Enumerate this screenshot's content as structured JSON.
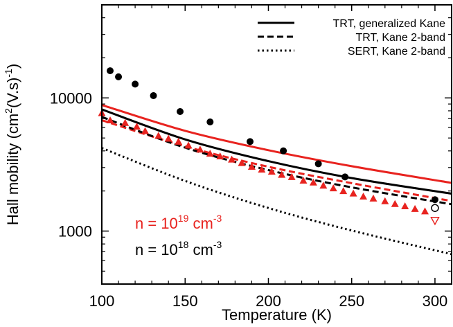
{
  "chart_data": {
    "type": "line",
    "xlabel": "Temperature (K)",
    "ylabel": "Hall mobility (cm2(V.s)-1)",
    "ylabel_parts": {
      "pre": "Hall mobility (cm",
      "sup1": "2",
      "mid": "(V.s)",
      "sup2": "-1",
      "post": ")"
    },
    "xlim": [
      100,
      310
    ],
    "ylim": [
      400,
      50000
    ],
    "yscale": "log",
    "xticks": [
      100,
      150,
      200,
      250,
      300
    ],
    "yticks": [
      {
        "value": 1000,
        "label": "1000"
      },
      {
        "value": 10000,
        "label": "10000"
      }
    ],
    "grid": false,
    "legend_position": "top-right",
    "legend": [
      {
        "label": "TRT, generalized Kane",
        "dash": "solid"
      },
      {
        "label": "TRT, Kane 2-band",
        "dash": "dashed"
      },
      {
        "label": "SERT, Kane 2-band",
        "dash": "dotted"
      }
    ],
    "annotations": [
      {
        "base": "n = 10",
        "exp": "19",
        "unit": " cm",
        "unit_exp": "-3",
        "color": "#e8231f"
      },
      {
        "base": "n = 10",
        "exp": "18",
        "unit": " cm",
        "unit_exp": "-3",
        "color": "#000000"
      }
    ],
    "lines": [
      {
        "color": "#e8231f",
        "dash": "solid",
        "x": [
          100,
          150,
          200,
          250,
          310
        ],
        "y": [
          8850,
          5660,
          4050,
          3070,
          2300
        ]
      },
      {
        "color": "#000000",
        "dash": "solid",
        "x": [
          100,
          150,
          200,
          250,
          310
        ],
        "y": [
          8200,
          4880,
          3350,
          2500,
          1910
        ]
      },
      {
        "color": "#e8231f",
        "dash": "dashed",
        "x": [
          100,
          150,
          200,
          250,
          310
        ],
        "y": [
          6800,
          4330,
          3040,
          2290,
          1680
        ]
      },
      {
        "color": "#000000",
        "dash": "dashed",
        "x": [
          100,
          150,
          200,
          250,
          310
        ],
        "y": [
          7200,
          4230,
          2870,
          2130,
          1590
        ]
      },
      {
        "color": "#000000",
        "dash": "dotted",
        "x": [
          100,
          150,
          200,
          250,
          310
        ],
        "y": [
          4200,
          2380,
          1490,
          1010,
          670
        ]
      }
    ],
    "points": [
      {
        "name": "measured-black",
        "marker": "circle",
        "color": "#000000",
        "x": [
          105,
          110,
          120,
          131,
          147,
          165,
          189,
          209,
          230,
          246,
          300
        ],
        "y": [
          16000,
          14400,
          12700,
          10400,
          7900,
          6600,
          4700,
          4000,
          3200,
          2550,
          1720
        ]
      },
      {
        "name": "measured-red",
        "marker": "triangle",
        "color": "#e8231f",
        "x": [
          100,
          105,
          114,
          121,
          126,
          134,
          140,
          146,
          152,
          159,
          165,
          171,
          178,
          184,
          190,
          196,
          202,
          208,
          214,
          221,
          227,
          233,
          239,
          245,
          251,
          257,
          263,
          270,
          276,
          282,
          288,
          294
        ],
        "y": [
          7700,
          6800,
          6500,
          6100,
          5650,
          5200,
          4950,
          4700,
          4400,
          4100,
          3820,
          3650,
          3450,
          3250,
          3050,
          2900,
          2800,
          2650,
          2550,
          2400,
          2320,
          2200,
          2100,
          2000,
          1920,
          1820,
          1760,
          1680,
          1600,
          1540,
          1470,
          1410
        ]
      },
      {
        "name": "measured-300K-open-triangle",
        "marker": "open-triangle-down",
        "color": "#e8231f",
        "x": [
          300
        ],
        "y": [
          1200
        ]
      },
      {
        "name": "measured-300K-open-circle",
        "marker": "open-circle",
        "color": "#000000",
        "x": [
          300
        ],
        "y": [
          1490
        ]
      }
    ]
  }
}
